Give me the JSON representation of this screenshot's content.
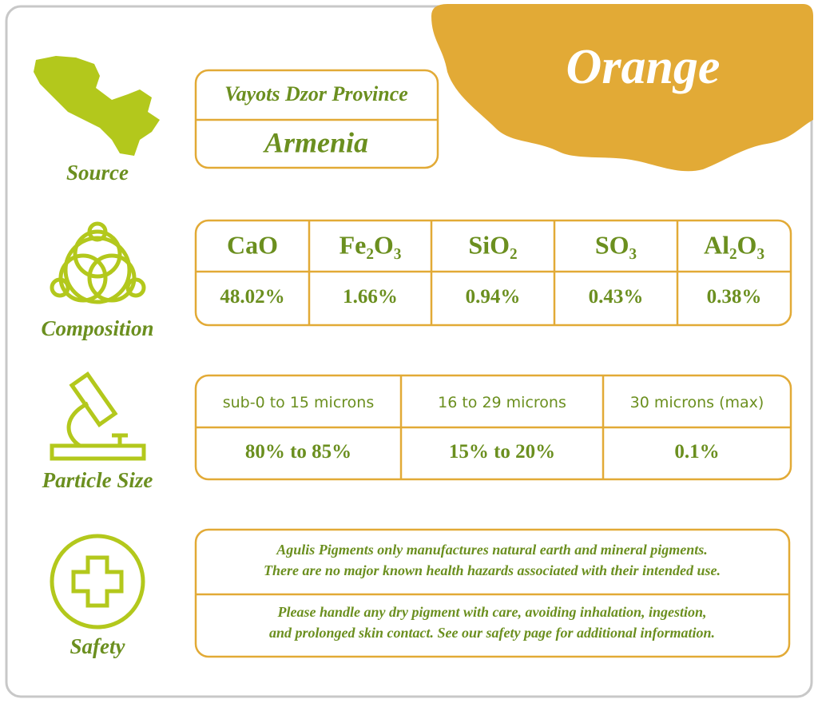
{
  "title": "Orange",
  "source": {
    "label": "Source",
    "region": "Vayots Dzor Province",
    "country": "Armenia"
  },
  "composition": {
    "label": "Composition",
    "headers": [
      "CaO",
      "Fe₂O₃",
      "SiO₂",
      "SO₃",
      "Al₂O₃"
    ],
    "values": [
      "48.02%",
      "1.66%",
      "0.94%",
      "0.43%",
      "0.38%"
    ]
  },
  "particle_size": {
    "label": "Particle Size",
    "headers": [
      "sub-0 to 15 microns",
      "16 to 29 microns",
      "30 microns (max)"
    ],
    "values": [
      "80% to 85%",
      "15% to 20%",
      "0.1%"
    ]
  },
  "safety": {
    "label": "Safety",
    "paragraphs": [
      [
        "Agulis Pigments only manufactures natural earth and mineral pigments.",
        "There are no major known health hazards associated with their intended use."
      ],
      [
        "Please handle any dry pigment with care, avoiding inhalation, ingestion,",
        "and prolonged skin contact. See our safety page for additional information."
      ]
    ]
  }
}
